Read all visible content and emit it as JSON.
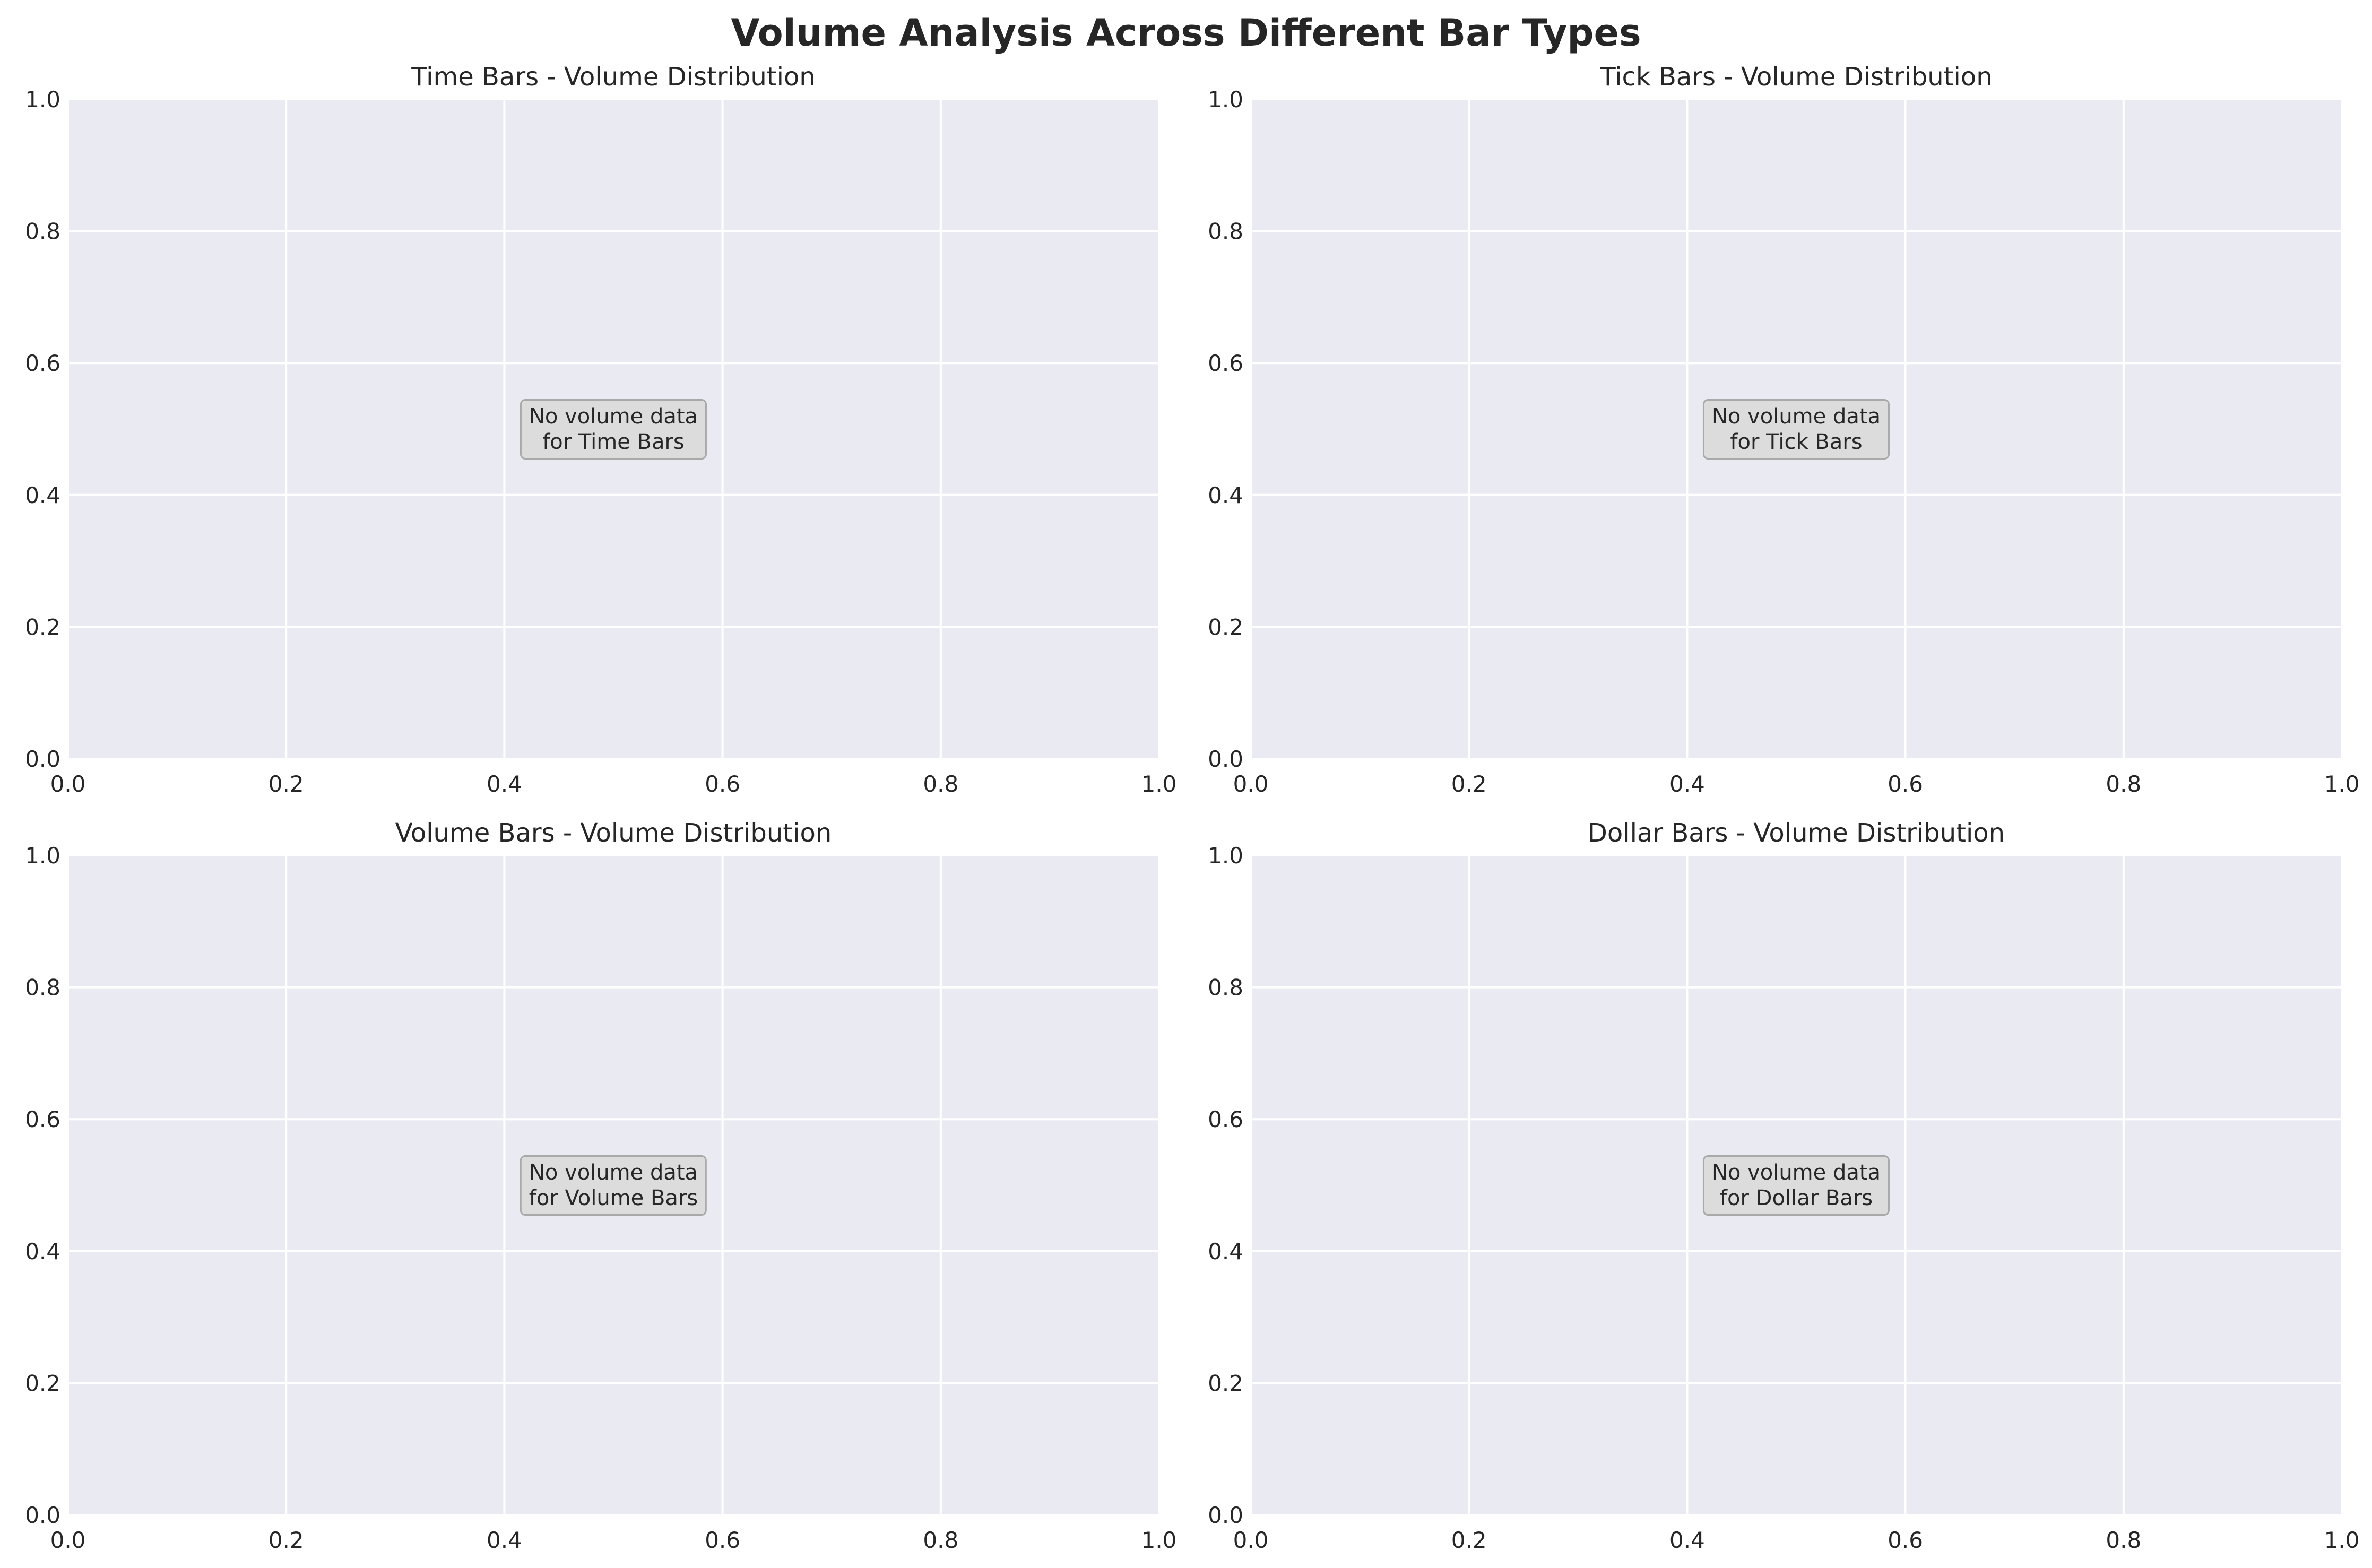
{
  "figure": {
    "title": "Volume Analysis Across Different Bar Types",
    "plot_bg": "#eaeaf2",
    "grid_color": "#ffffff",
    "note_bg": "#dcdcdc",
    "note_border": "#a9a9a9"
  },
  "chart_data": [
    {
      "type": "bar",
      "title": "Time Bars - Volume Distribution",
      "xlim": [
        0,
        1
      ],
      "ylim": [
        0,
        1
      ],
      "xticks": [
        "0.0",
        "0.2",
        "0.4",
        "0.6",
        "0.8",
        "1.0"
      ],
      "yticks": [
        "0.0",
        "0.2",
        "0.4",
        "0.6",
        "0.8",
        "1.0"
      ],
      "grid": true,
      "annotation": "No volume data\nfor Time Bars",
      "values": []
    },
    {
      "type": "bar",
      "title": "Tick Bars - Volume Distribution",
      "xlim": [
        0,
        1
      ],
      "ylim": [
        0,
        1
      ],
      "xticks": [
        "0.0",
        "0.2",
        "0.4",
        "0.6",
        "0.8",
        "1.0"
      ],
      "yticks": [
        "0.0",
        "0.2",
        "0.4",
        "0.6",
        "0.8",
        "1.0"
      ],
      "grid": true,
      "annotation": "No volume data\nfor Tick Bars",
      "values": []
    },
    {
      "type": "bar",
      "title": "Volume Bars - Volume Distribution",
      "xlim": [
        0,
        1
      ],
      "ylim": [
        0,
        1
      ],
      "xticks": [
        "0.0",
        "0.2",
        "0.4",
        "0.6",
        "0.8",
        "1.0"
      ],
      "yticks": [
        "0.0",
        "0.2",
        "0.4",
        "0.6",
        "0.8",
        "1.0"
      ],
      "grid": true,
      "annotation": "No volume data\nfor Volume Bars",
      "values": []
    },
    {
      "type": "bar",
      "title": "Dollar Bars - Volume Distribution",
      "xlim": [
        0,
        1
      ],
      "ylim": [
        0,
        1
      ],
      "xticks": [
        "0.0",
        "0.2",
        "0.4",
        "0.6",
        "0.8",
        "1.0"
      ],
      "yticks": [
        "0.0",
        "0.2",
        "0.4",
        "0.6",
        "0.8",
        "1.0"
      ],
      "grid": true,
      "annotation": "No volume data\nfor Dollar Bars",
      "values": []
    }
  ]
}
